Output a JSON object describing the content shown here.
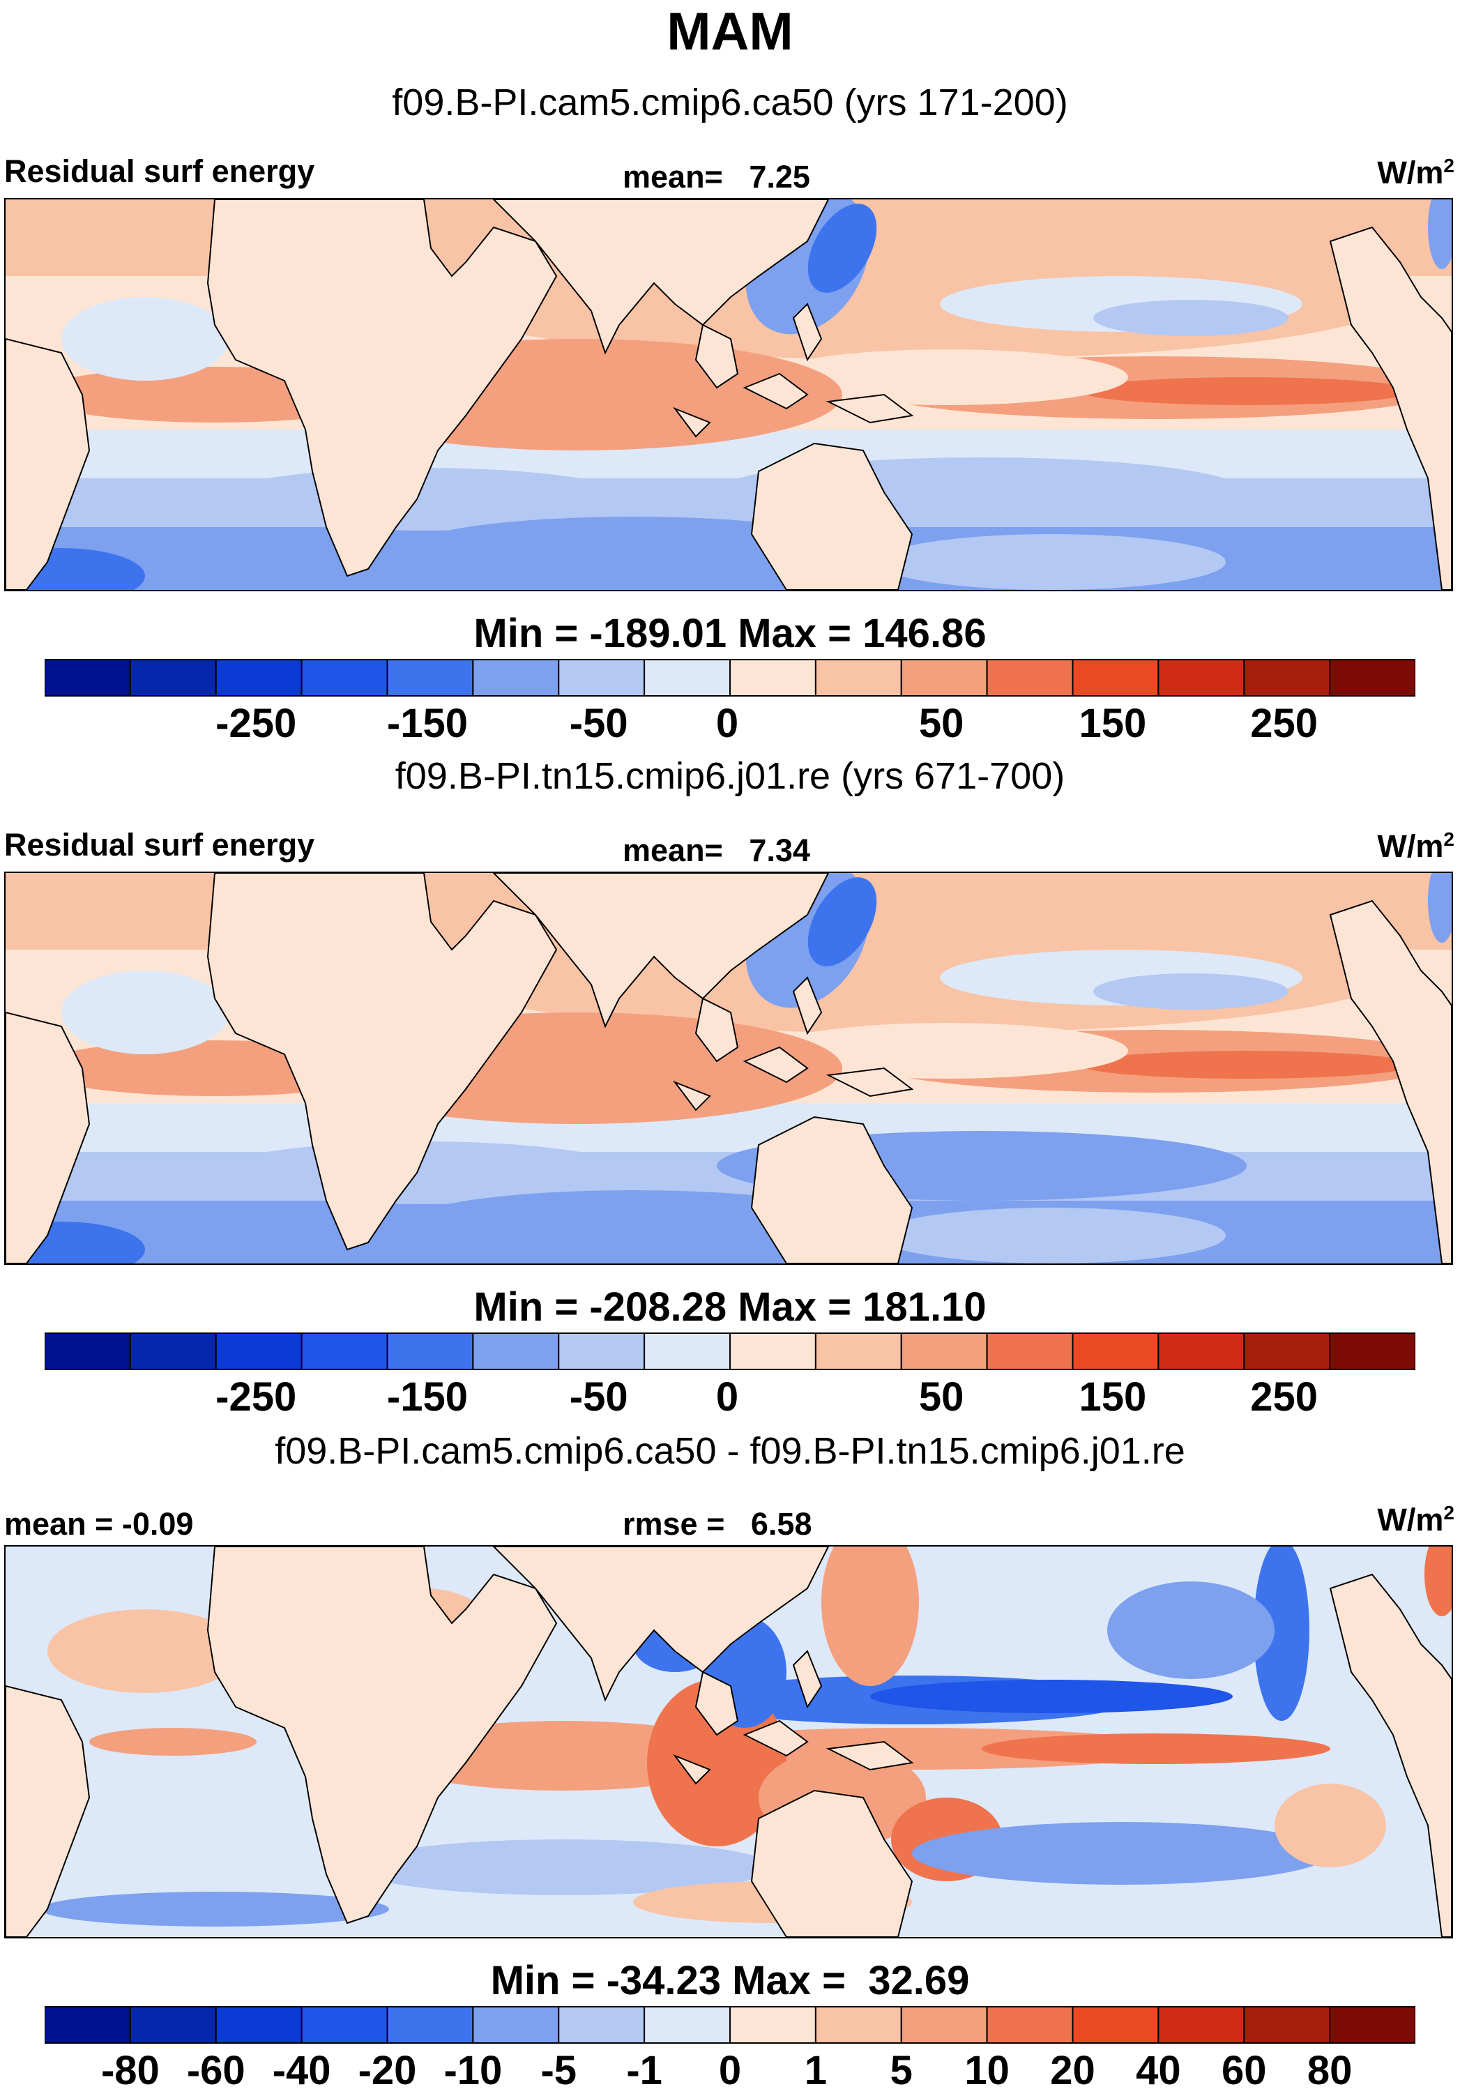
{
  "title": "MAM",
  "panels": [
    {
      "subtitle": "f09.B-PI.cam5.cmip6.ca50 (yrs 171-200)",
      "left_label": "Residual surf energy",
      "stat_label": "mean=",
      "stat_value": "7.25",
      "units": "W/m",
      "units_sup": "2",
      "min_label": "Min =",
      "min_value": "-189.01",
      "max_label": "Max =",
      "max_value": "146.86",
      "scale": "abs"
    },
    {
      "subtitle": "f09.B-PI.tn15.cmip6.j01.re (yrs 671-700)",
      "left_label": "Residual surf energy",
      "stat_label": "mean=",
      "stat_value": "7.34",
      "units": "W/m",
      "units_sup": "2",
      "min_label": "Min =",
      "min_value": "-208.28",
      "max_label": "Max =",
      "max_value": "181.10",
      "scale": "abs"
    },
    {
      "subtitle": "f09.B-PI.cam5.cmip6.ca50 - f09.B-PI.tn15.cmip6.j01.re",
      "left_label": "mean =",
      "left_value": "-0.09",
      "stat_label": "rmse =",
      "stat_value": "6.58",
      "units": "W/m",
      "units_sup": "2",
      "min_label": "Min =",
      "min_value": "-34.23",
      "max_label": "Max =",
      "max_value": "32.69",
      "scale": "diff"
    }
  ],
  "chart_data": {
    "type": "heatmap",
    "map_projection": "cylindrical equidistant, tropics/subtropics band",
    "colorbars": {
      "abs": {
        "ticks": [
          "-250",
          "-150",
          "-50",
          "0",
          "50",
          "150",
          "250"
        ],
        "levels": [
          -300,
          -250,
          -200,
          -150,
          -100,
          -50,
          -25,
          0,
          25,
          50,
          100,
          150,
          200,
          250,
          300
        ],
        "colors": [
          "#00128f",
          "#0527b0",
          "#0b3ad6",
          "#1f55e8",
          "#3d74ee",
          "#7da0ef",
          "#b3c8f3",
          "#dde9f8",
          "#fde5d5",
          "#f9c3a6",
          "#f4a07e",
          "#ef744e",
          "#ea4a22",
          "#d12c13",
          "#a71e0d",
          "#7e0a06"
        ]
      },
      "diff": {
        "ticks": [
          "-80",
          "-60",
          "-40",
          "-20",
          "-10",
          "-5",
          "-1",
          "0",
          "1",
          "5",
          "10",
          "20",
          "40",
          "60",
          "80"
        ],
        "levels": [
          -80,
          -60,
          -40,
          -20,
          -10,
          -5,
          -1,
          0,
          1,
          5,
          10,
          20,
          40,
          60,
          80
        ],
        "colors": [
          "#00128f",
          "#0527b0",
          "#0b3ad6",
          "#1f55e8",
          "#3d74ee",
          "#7da0ef",
          "#b3c8f3",
          "#dde9f8",
          "#fde5d5",
          "#f9c3a6",
          "#f4a07e",
          "#ef744e",
          "#ea4a22",
          "#d12c13",
          "#a71e0d",
          "#7e0a06"
        ]
      }
    }
  }
}
